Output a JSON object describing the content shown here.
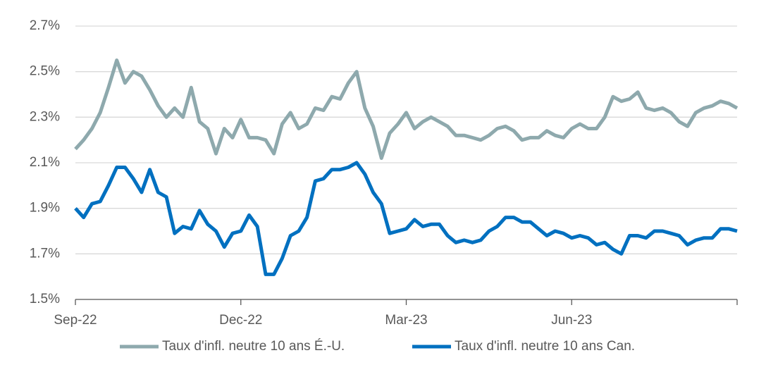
{
  "chart_data": {
    "type": "line",
    "categories": [
      "Sep-22",
      null,
      null,
      null,
      null,
      null,
      null,
      null,
      null,
      null,
      null,
      null,
      null,
      null,
      null,
      null,
      null,
      null,
      null,
      null,
      "Dec-22",
      null,
      null,
      null,
      null,
      null,
      null,
      null,
      null,
      null,
      null,
      null,
      null,
      null,
      null,
      null,
      null,
      null,
      null,
      null,
      "Mar-23",
      null,
      null,
      null,
      null,
      null,
      null,
      null,
      null,
      null,
      null,
      null,
      null,
      null,
      null,
      null,
      null,
      null,
      null,
      null,
      "Jun-23",
      null,
      null,
      null,
      null,
      null,
      null,
      null,
      null,
      null,
      null,
      null,
      null,
      null,
      null,
      null,
      null,
      null,
      null,
      null,
      null
    ],
    "series": [
      {
        "name": "Taux d'infl. neutre 10 ans É.-U.",
        "color": "#8ea9ad",
        "values": [
          2.16,
          2.2,
          2.25,
          2.32,
          2.43,
          2.55,
          2.45,
          2.5,
          2.48,
          2.42,
          2.35,
          2.3,
          2.34,
          2.3,
          2.43,
          2.28,
          2.25,
          2.14,
          2.25,
          2.21,
          2.29,
          2.21,
          2.21,
          2.2,
          2.14,
          2.27,
          2.32,
          2.25,
          2.27,
          2.34,
          2.33,
          2.39,
          2.38,
          2.45,
          2.5,
          2.34,
          2.26,
          2.12,
          2.23,
          2.27,
          2.32,
          2.25,
          2.28,
          2.3,
          2.28,
          2.26,
          2.22,
          2.22,
          2.21,
          2.2,
          2.22,
          2.25,
          2.26,
          2.24,
          2.2,
          2.21,
          2.21,
          2.24,
          2.22,
          2.21,
          2.25,
          2.27,
          2.25,
          2.25,
          2.3,
          2.39,
          2.37,
          2.38,
          2.41,
          2.34,
          2.33,
          2.34,
          2.32,
          2.28,
          2.26,
          2.32,
          2.34,
          2.35,
          2.37,
          2.36,
          2.34
        ]
      },
      {
        "name": "Taux d'infl. neutre 10 ans Can.",
        "color": "#0070c0",
        "values": [
          1.9,
          1.86,
          1.92,
          1.93,
          2.0,
          2.08,
          2.08,
          2.03,
          1.97,
          2.07,
          1.97,
          1.95,
          1.79,
          1.82,
          1.81,
          1.89,
          1.83,
          1.8,
          1.73,
          1.79,
          1.8,
          1.87,
          1.82,
          1.61,
          1.61,
          1.68,
          1.78,
          1.8,
          1.86,
          2.02,
          2.03,
          2.07,
          2.07,
          2.08,
          2.1,
          2.05,
          1.97,
          1.92,
          1.79,
          1.8,
          1.81,
          1.85,
          1.82,
          1.83,
          1.83,
          1.78,
          1.75,
          1.76,
          1.75,
          1.76,
          1.8,
          1.82,
          1.86,
          1.86,
          1.84,
          1.84,
          1.81,
          1.78,
          1.8,
          1.79,
          1.77,
          1.78,
          1.77,
          1.74,
          1.75,
          1.72,
          1.7,
          1.78,
          1.78,
          1.77,
          1.8,
          1.8,
          1.79,
          1.78,
          1.74,
          1.76,
          1.77,
          1.77,
          1.81,
          1.81,
          1.8
        ]
      }
    ],
    "ylim": [
      1.5,
      2.7
    ],
    "yticks": [
      {
        "value": 1.5,
        "label": "1.5%"
      },
      {
        "value": 1.7,
        "label": "1.7%"
      },
      {
        "value": 1.9,
        "label": "1.9%"
      },
      {
        "value": 2.1,
        "label": "2.1%"
      },
      {
        "value": 2.3,
        "label": "2.3%"
      },
      {
        "value": 2.5,
        "label": "2.5%"
      },
      {
        "value": 2.7,
        "label": "2.7%"
      }
    ],
    "grid": true,
    "legend": "bottom"
  }
}
